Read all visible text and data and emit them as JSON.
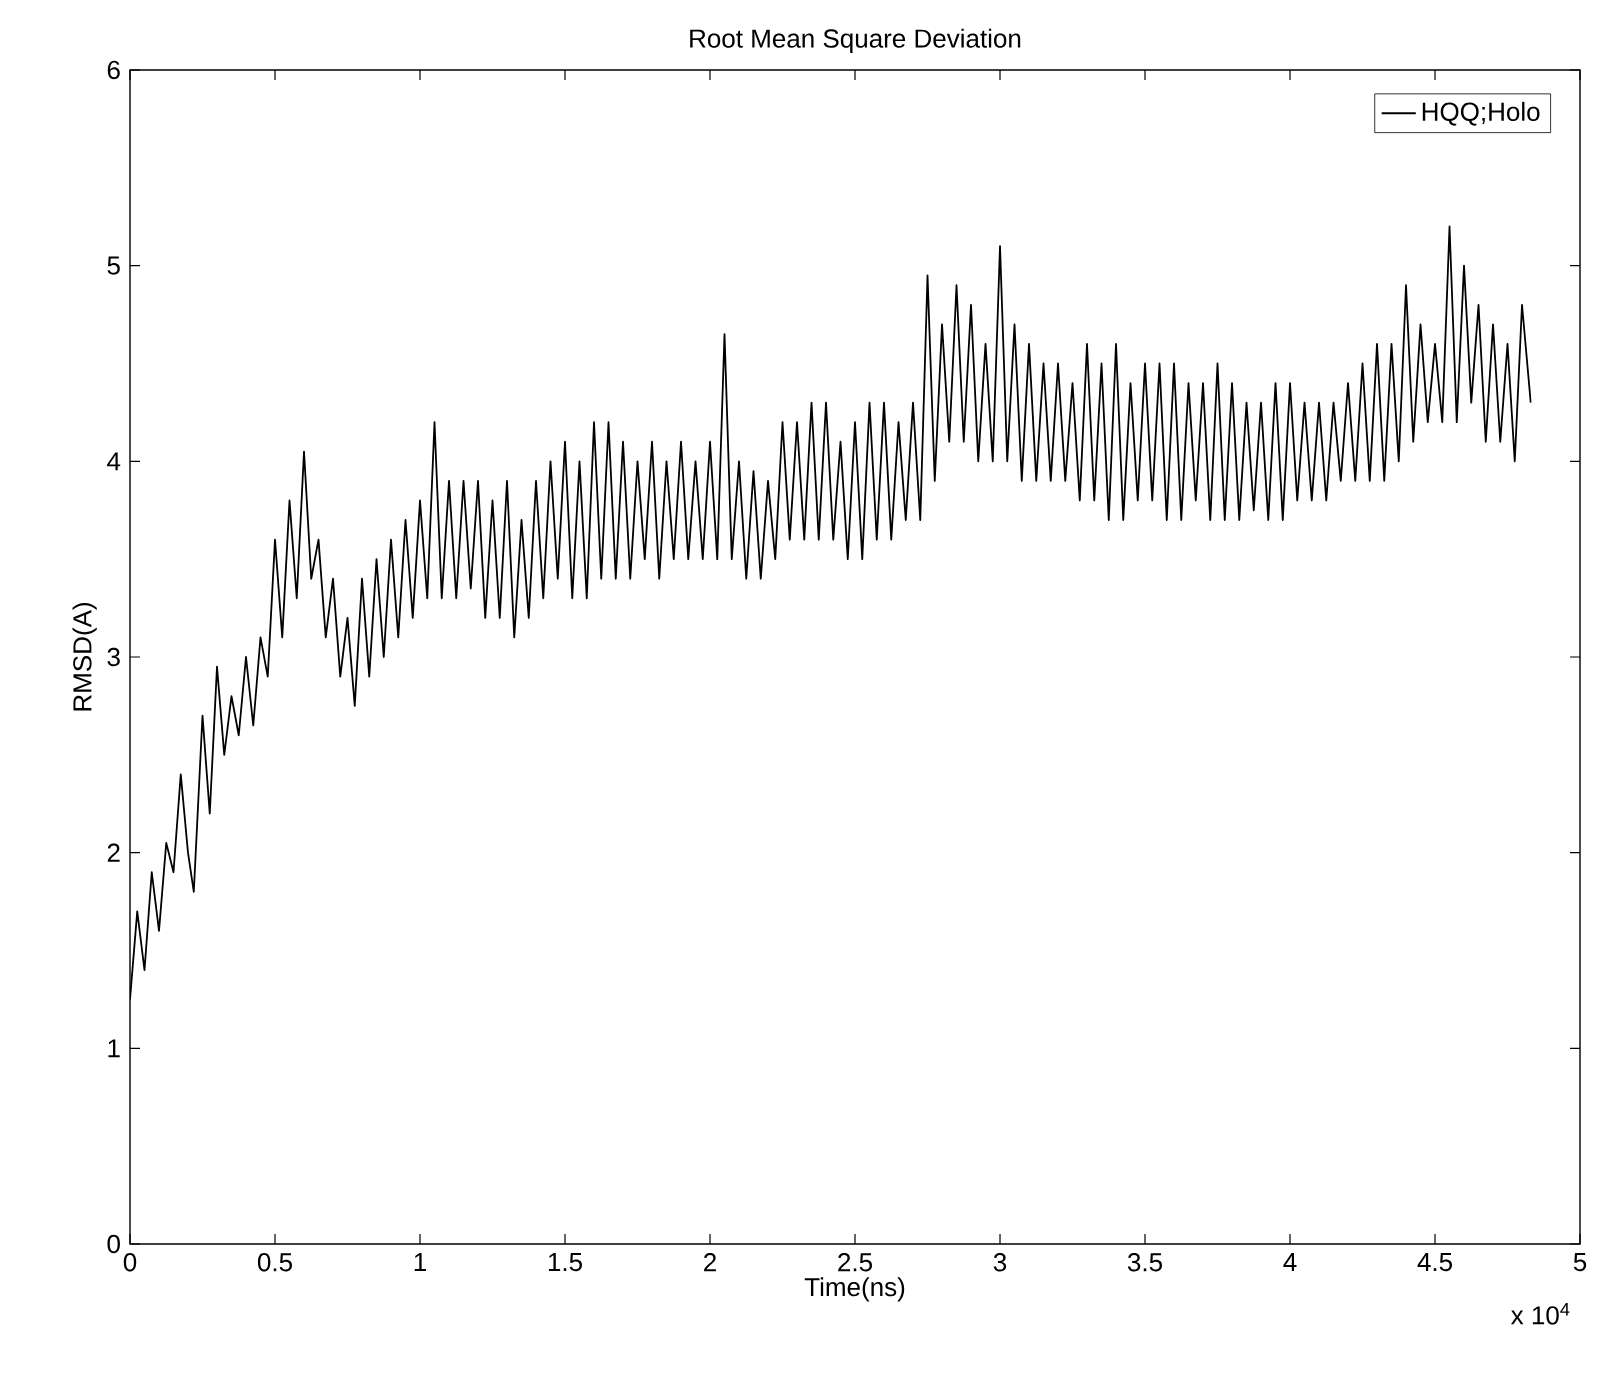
{
  "chart_data": {
    "type": "line",
    "title": "Root Mean Square Deviation",
    "xlabel": "Time(ns)",
    "ylabel": "RMSD(A)",
    "annotations": [
      "x 10$^{4}$"
    ],
    "xlim": [
      0,
      5
    ],
    "xticks": [
      0,
      0.5,
      1,
      1.5,
      2,
      2.5,
      3,
      3.5,
      4,
      4.5,
      5
    ],
    "ylim": [
      0,
      6
    ],
    "yticks": [
      0,
      1,
      2,
      3,
      4,
      5,
      6
    ],
    "grid": false,
    "legend": "top right",
    "marker": "none",
    "line_style": "solid",
    "series": [
      {
        "name": "HQQ;Holo",
        "color": "#000000",
        "x": [
          0,
          0.025,
          0.05,
          0.075,
          0.1,
          0.125,
          0.15,
          0.175,
          0.2,
          0.22,
          0.25,
          0.275,
          0.3,
          0.325,
          0.35,
          0.375,
          0.4,
          0.425,
          0.45,
          0.475,
          0.5,
          0.525,
          0.55,
          0.575,
          0.6,
          0.625,
          0.65,
          0.675,
          0.7,
          0.725,
          0.75,
          0.775,
          0.8,
          0.825,
          0.85,
          0.875,
          0.9,
          0.925,
          0.95,
          0.975,
          1.0,
          1.025,
          1.05,
          1.075,
          1.1,
          1.125,
          1.15,
          1.175,
          1.2,
          1.225,
          1.25,
          1.275,
          1.3,
          1.325,
          1.35,
          1.375,
          1.4,
          1.425,
          1.45,
          1.475,
          1.5,
          1.525,
          1.55,
          1.575,
          1.6,
          1.625,
          1.65,
          1.675,
          1.7,
          1.725,
          1.75,
          1.775,
          1.8,
          1.825,
          1.85,
          1.875,
          1.9,
          1.925,
          1.95,
          1.975,
          2.0,
          2.025,
          2.05,
          2.075,
          2.1,
          2.125,
          2.15,
          2.175,
          2.2,
          2.225,
          2.25,
          2.275,
          2.3,
          2.325,
          2.35,
          2.375,
          2.4,
          2.425,
          2.45,
          2.475,
          2.5,
          2.525,
          2.55,
          2.575,
          2.6,
          2.625,
          2.65,
          2.675,
          2.7,
          2.725,
          2.75,
          2.775,
          2.8,
          2.825,
          2.85,
          2.875,
          2.9,
          2.925,
          2.95,
          2.975,
          3.0,
          3.025,
          3.05,
          3.075,
          3.1,
          3.125,
          3.15,
          3.175,
          3.2,
          3.225,
          3.25,
          3.275,
          3.3,
          3.325,
          3.35,
          3.375,
          3.4,
          3.425,
          3.45,
          3.475,
          3.5,
          3.525,
          3.55,
          3.575,
          3.6,
          3.625,
          3.65,
          3.675,
          3.7,
          3.725,
          3.75,
          3.775,
          3.8,
          3.825,
          3.85,
          3.875,
          3.9,
          3.925,
          3.95,
          3.975,
          4.0,
          4.025,
          4.05,
          4.075,
          4.1,
          4.125,
          4.15,
          4.175,
          4.2,
          4.225,
          4.25,
          4.275,
          4.3,
          4.325,
          4.35,
          4.375,
          4.4,
          4.425,
          4.45,
          4.475,
          4.5,
          4.525,
          4.55,
          4.575,
          4.6,
          4.625,
          4.65,
          4.675,
          4.7,
          4.725,
          4.75,
          4.775,
          4.8,
          4.83
        ],
        "values": [
          1.25,
          1.7,
          1.4,
          1.9,
          1.6,
          2.05,
          1.9,
          2.4,
          2.0,
          1.8,
          2.7,
          2.2,
          2.95,
          2.5,
          2.8,
          2.6,
          3.0,
          2.65,
          3.1,
          2.9,
          3.6,
          3.1,
          3.8,
          3.3,
          4.05,
          3.4,
          3.6,
          3.1,
          3.4,
          2.9,
          3.2,
          2.75,
          3.4,
          2.9,
          3.5,
          3.0,
          3.6,
          3.1,
          3.7,
          3.2,
          3.8,
          3.3,
          4.2,
          3.3,
          3.9,
          3.3,
          3.9,
          3.35,
          3.9,
          3.2,
          3.8,
          3.2,
          3.9,
          3.1,
          3.7,
          3.2,
          3.9,
          3.3,
          4.0,
          3.4,
          4.1,
          3.3,
          4.0,
          3.3,
          4.2,
          3.4,
          4.2,
          3.4,
          4.1,
          3.4,
          4.0,
          3.5,
          4.1,
          3.4,
          4.0,
          3.5,
          4.1,
          3.5,
          4.0,
          3.5,
          4.1,
          3.5,
          4.65,
          3.5,
          4.0,
          3.4,
          3.95,
          3.4,
          3.9,
          3.5,
          4.2,
          3.6,
          4.2,
          3.6,
          4.3,
          3.6,
          4.3,
          3.6,
          4.1,
          3.5,
          4.2,
          3.5,
          4.3,
          3.6,
          4.3,
          3.6,
          4.2,
          3.7,
          4.3,
          3.7,
          4.95,
          3.9,
          4.7,
          4.1,
          4.9,
          4.1,
          4.8,
          4.0,
          4.6,
          4.0,
          5.1,
          4.0,
          4.7,
          3.9,
          4.6,
          3.9,
          4.5,
          3.9,
          4.5,
          3.9,
          4.4,
          3.8,
          4.6,
          3.8,
          4.5,
          3.7,
          4.6,
          3.7,
          4.4,
          3.8,
          4.5,
          3.8,
          4.5,
          3.7,
          4.5,
          3.7,
          4.4,
          3.8,
          4.4,
          3.7,
          4.5,
          3.7,
          4.4,
          3.7,
          4.3,
          3.75,
          4.3,
          3.7,
          4.4,
          3.7,
          4.4,
          3.8,
          4.3,
          3.8,
          4.3,
          3.8,
          4.3,
          3.9,
          4.4,
          3.9,
          4.5,
          3.9,
          4.6,
          3.9,
          4.6,
          4.0,
          4.9,
          4.1,
          4.7,
          4.2,
          4.6,
          4.2,
          5.2,
          4.2,
          5.0,
          4.3,
          4.8,
          4.1,
          4.7,
          4.1,
          4.6,
          4.0,
          4.8,
          4.3
        ]
      }
    ]
  }
}
